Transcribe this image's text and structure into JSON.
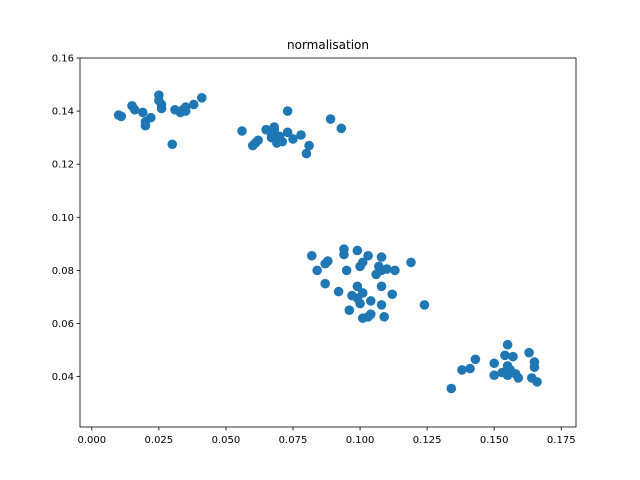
{
  "chart_data": {
    "type": "scatter",
    "title": "normalisation",
    "xlabel": "",
    "ylabel": "",
    "xlim": [
      -0.0044,
      0.1805
    ],
    "ylim": [
      0.021,
      0.16
    ],
    "x_ticks": [
      "0.000",
      "0.025",
      "0.050",
      "0.075",
      "0.100",
      "0.125",
      "0.150",
      "0.175"
    ],
    "y_ticks": [
      "0.04",
      "0.06",
      "0.08",
      "0.10",
      "0.12",
      "0.14",
      "0.16"
    ],
    "grid": false,
    "marker_color": "#1f77b4",
    "points": [
      [
        0.01,
        0.1385
      ],
      [
        0.011,
        0.138
      ],
      [
        0.015,
        0.142
      ],
      [
        0.016,
        0.1405
      ],
      [
        0.019,
        0.1395
      ],
      [
        0.02,
        0.1345
      ],
      [
        0.02,
        0.136
      ],
      [
        0.022,
        0.1375
      ],
      [
        0.025,
        0.146
      ],
      [
        0.025,
        0.144
      ],
      [
        0.026,
        0.1425
      ],
      [
        0.026,
        0.141
      ],
      [
        0.03,
        0.1275
      ],
      [
        0.031,
        0.1405
      ],
      [
        0.033,
        0.1395
      ],
      [
        0.034,
        0.1405
      ],
      [
        0.035,
        0.1415
      ],
      [
        0.035,
        0.14
      ],
      [
        0.038,
        0.1425
      ],
      [
        0.041,
        0.145
      ],
      [
        0.056,
        0.1325
      ],
      [
        0.06,
        0.127
      ],
      [
        0.061,
        0.128
      ],
      [
        0.062,
        0.129
      ],
      [
        0.065,
        0.133
      ],
      [
        0.067,
        0.13
      ],
      [
        0.067,
        0.1315
      ],
      [
        0.068,
        0.133
      ],
      [
        0.068,
        0.134
      ],
      [
        0.069,
        0.128
      ],
      [
        0.07,
        0.1305
      ],
      [
        0.071,
        0.1285
      ],
      [
        0.073,
        0.14
      ],
      [
        0.073,
        0.132
      ],
      [
        0.075,
        0.1295
      ],
      [
        0.078,
        0.131
      ],
      [
        0.08,
        0.124
      ],
      [
        0.081,
        0.127
      ],
      [
        0.089,
        0.137
      ],
      [
        0.093,
        0.1335
      ],
      [
        0.082,
        0.0855
      ],
      [
        0.084,
        0.08
      ],
      [
        0.087,
        0.0825
      ],
      [
        0.087,
        0.075
      ],
      [
        0.088,
        0.0835
      ],
      [
        0.092,
        0.072
      ],
      [
        0.094,
        0.088
      ],
      [
        0.094,
        0.086
      ],
      [
        0.095,
        0.08
      ],
      [
        0.096,
        0.065
      ],
      [
        0.097,
        0.0705
      ],
      [
        0.099,
        0.0875
      ],
      [
        0.099,
        0.0695
      ],
      [
        0.099,
        0.074
      ],
      [
        0.1,
        0.0815
      ],
      [
        0.1,
        0.0675
      ],
      [
        0.101,
        0.062
      ],
      [
        0.101,
        0.083
      ],
      [
        0.101,
        0.0715
      ],
      [
        0.103,
        0.0855
      ],
      [
        0.103,
        0.0625
      ],
      [
        0.104,
        0.0635
      ],
      [
        0.104,
        0.0685
      ],
      [
        0.106,
        0.0785
      ],
      [
        0.107,
        0.0815
      ],
      [
        0.108,
        0.08
      ],
      [
        0.108,
        0.074
      ],
      [
        0.108,
        0.067
      ],
      [
        0.108,
        0.085
      ],
      [
        0.109,
        0.0625
      ],
      [
        0.11,
        0.0805
      ],
      [
        0.112,
        0.071
      ],
      [
        0.113,
        0.08
      ],
      [
        0.119,
        0.083
      ],
      [
        0.124,
        0.067
      ],
      [
        0.134,
        0.0355
      ],
      [
        0.138,
        0.0425
      ],
      [
        0.141,
        0.043
      ],
      [
        0.143,
        0.0465
      ],
      [
        0.15,
        0.045
      ],
      [
        0.15,
        0.0405
      ],
      [
        0.153,
        0.0415
      ],
      [
        0.154,
        0.048
      ],
      [
        0.155,
        0.052
      ],
      [
        0.155,
        0.044
      ],
      [
        0.155,
        0.0405
      ],
      [
        0.156,
        0.0425
      ],
      [
        0.157,
        0.0475
      ],
      [
        0.158,
        0.041
      ],
      [
        0.159,
        0.0395
      ],
      [
        0.163,
        0.049
      ],
      [
        0.164,
        0.0395
      ],
      [
        0.165,
        0.0455
      ],
      [
        0.165,
        0.0435
      ],
      [
        0.166,
        0.038
      ]
    ]
  }
}
